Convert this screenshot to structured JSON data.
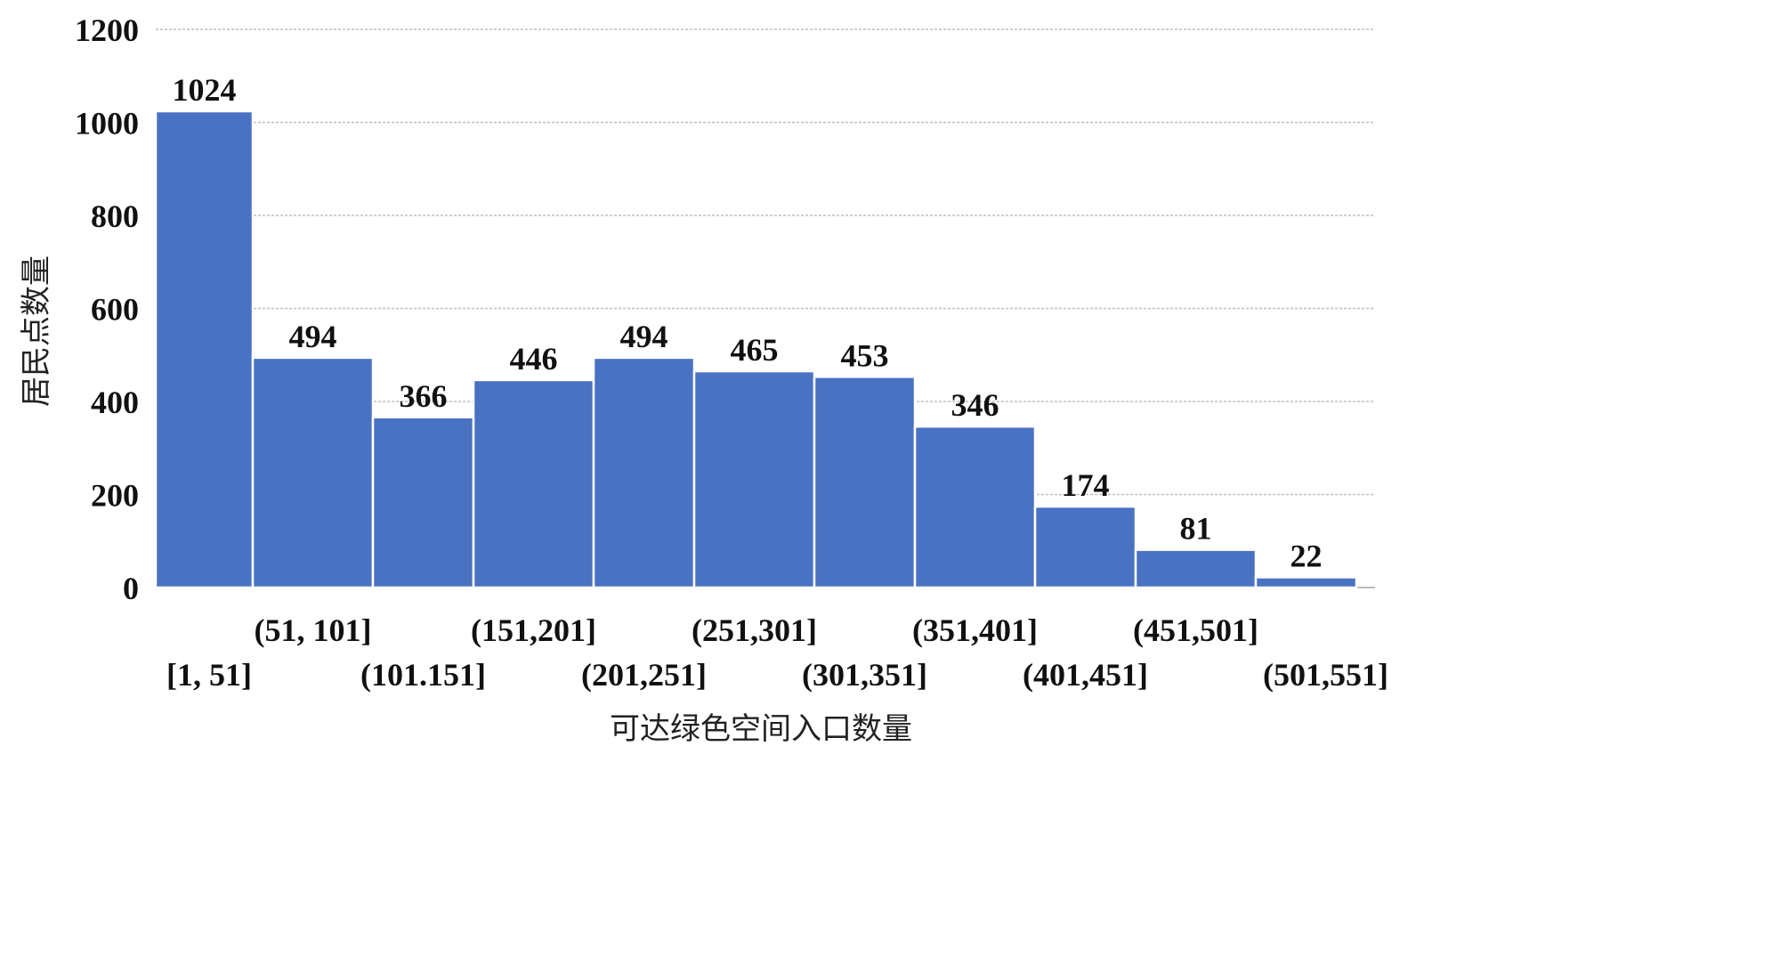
{
  "chart_data": {
    "type": "bar",
    "xlabel": "可达绿色空间入口数量",
    "ylabel": "居民点数量",
    "ylim": [
      0,
      1200
    ],
    "yticks": [
      0,
      200,
      400,
      600,
      800,
      1000,
      1200
    ],
    "grid": true,
    "bar_color": "#4A72C2",
    "categories": [
      "[1, 51]",
      "(51, 101]",
      "(101.151]",
      "(151,201]",
      "(201,251]",
      "(251,301]",
      "(301,351]",
      "(351,401]",
      "(401,451]",
      "(451,501]",
      "(501,551]"
    ],
    "values": [
      1024,
      494,
      366,
      446,
      494,
      465,
      453,
      346,
      174,
      81,
      22
    ]
  }
}
